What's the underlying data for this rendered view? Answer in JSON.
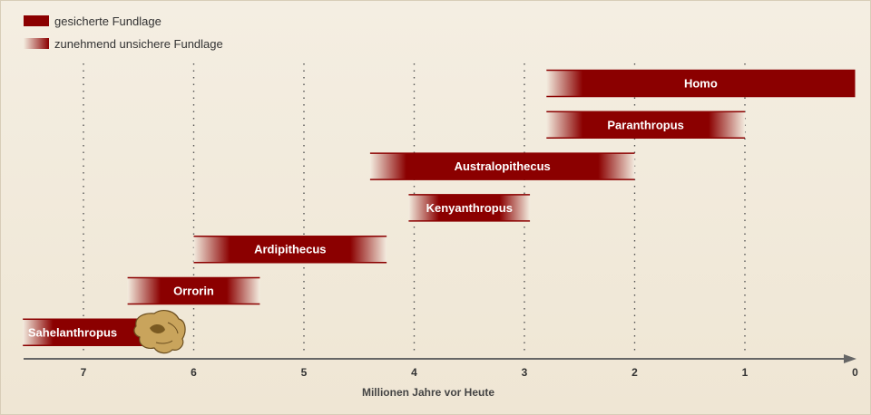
{
  "legend": {
    "certain": "gesicherte Fundlage",
    "uncertain": "zunehmend unsichere Fundlage"
  },
  "colors": {
    "bar": "#8b0000",
    "fade": "#f3ecdf",
    "axis": "#666666"
  },
  "chart_data": {
    "type": "range-bar",
    "xlabel": "Millionen Jahre vor Heute",
    "x_ticks": [
      7,
      6,
      5,
      4,
      3,
      2,
      1,
      0
    ],
    "xlim": [
      7.55,
      0
    ],
    "x_reversed": true,
    "grid": "dotted vertical at ticks",
    "series": [
      {
        "name": "Homo",
        "start": 2.8,
        "end": 0.0,
        "fade_start": true,
        "fade_end": false
      },
      {
        "name": "Paranthropus",
        "start": 2.8,
        "end": 1.0,
        "fade_start": true,
        "fade_end": true
      },
      {
        "name": "Australopithecus",
        "start": 4.4,
        "end": 2.0,
        "fade_start": true,
        "fade_end": true
      },
      {
        "name": "Kenyanthropus",
        "start": 4.05,
        "end": 2.95,
        "fade_start": true,
        "fade_end": true
      },
      {
        "name": "Ardipithecus",
        "start": 6.0,
        "end": 4.25,
        "fade_start": true,
        "fade_end": true
      },
      {
        "name": "Orrorin",
        "start": 6.6,
        "end": 5.4,
        "fade_start": true,
        "fade_end": true
      },
      {
        "name": "Sahelanthropus",
        "start": 7.55,
        "end": 6.45,
        "fade_start": true,
        "fade_end": false
      }
    ]
  }
}
